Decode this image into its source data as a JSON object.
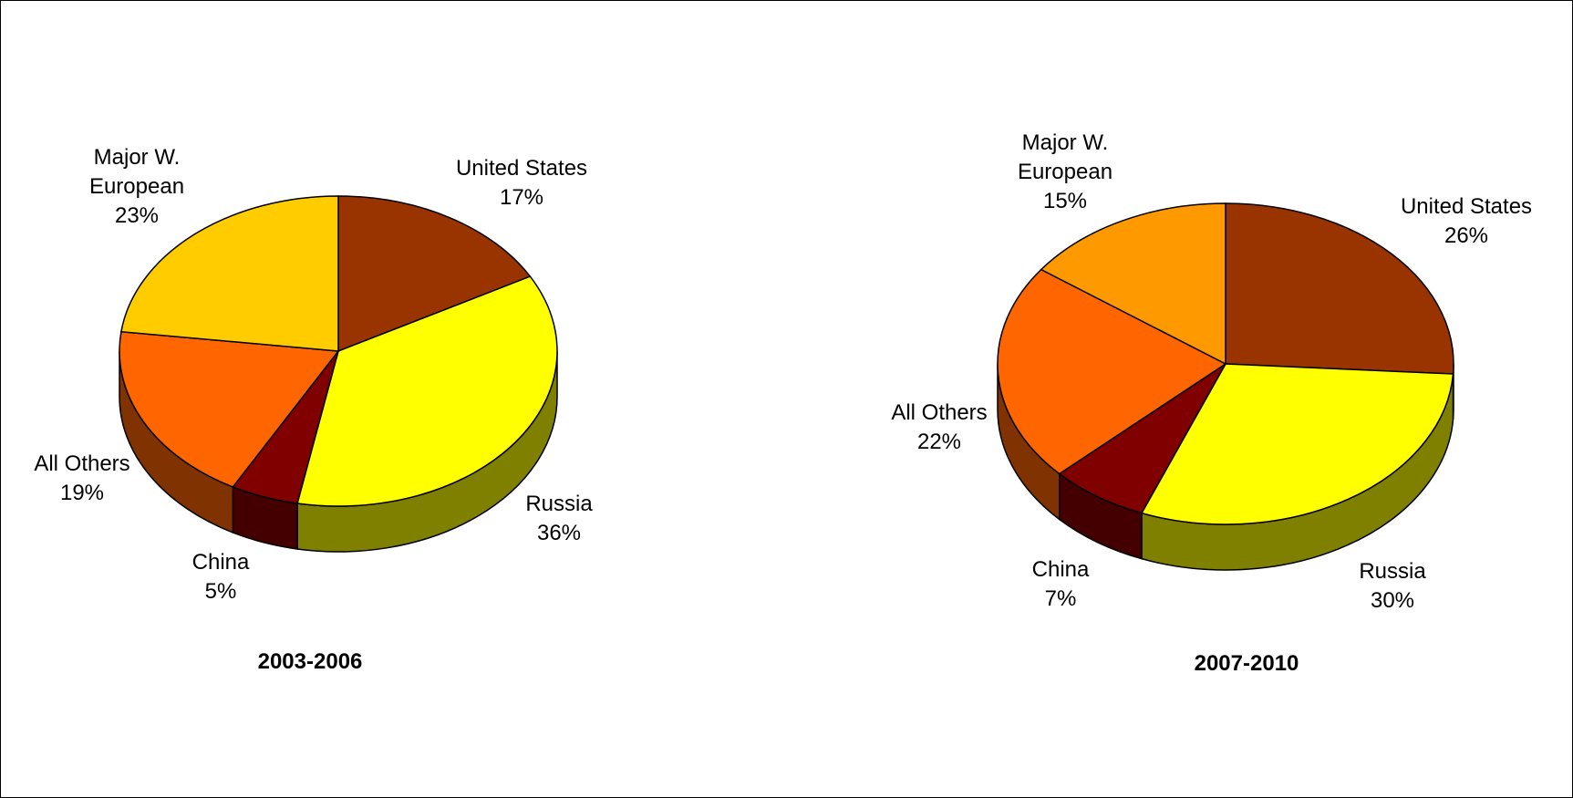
{
  "chart_data": [
    {
      "type": "pie",
      "title": "2003-2006",
      "slices": [
        {
          "label": "United States",
          "value": 17,
          "color": "#993300",
          "side": "#7a2900"
        },
        {
          "label": "Russia",
          "value": 36,
          "color": "#ffff00",
          "side": "#808000"
        },
        {
          "label": "China",
          "value": 5,
          "color": "#800000",
          "side": "#440000"
        },
        {
          "label": "All Others",
          "value": 19,
          "color": "#ff6600",
          "side": "#803300"
        },
        {
          "label": "Major W. European",
          "value": 23,
          "color": "#ffcc00",
          "side": "#806600"
        }
      ],
      "labels": [
        {
          "lines": [
            "United States",
            "17%"
          ]
        },
        {
          "lines": [
            "Russia",
            "36%"
          ]
        },
        {
          "lines": [
            "China",
            "5%"
          ]
        },
        {
          "lines": [
            "All Others",
            "19%"
          ]
        },
        {
          "lines": [
            "Major W.",
            "European",
            "23%"
          ]
        }
      ]
    },
    {
      "type": "pie",
      "title": "2007-2010",
      "slices": [
        {
          "label": "United States",
          "value": 26,
          "color": "#993300",
          "side": "#7a2900"
        },
        {
          "label": "Russia",
          "value": 30,
          "color": "#ffff00",
          "side": "#808000"
        },
        {
          "label": "China",
          "value": 7,
          "color": "#800000",
          "side": "#440000"
        },
        {
          "label": "All Others",
          "value": 22,
          "color": "#ff6600",
          "side": "#803300"
        },
        {
          "label": "Major W. European",
          "value": 15,
          "color": "#ff9900",
          "side": "#804c00"
        }
      ],
      "labels": [
        {
          "lines": [
            "United States",
            "26%"
          ]
        },
        {
          "lines": [
            "Russia",
            "30%"
          ]
        },
        {
          "lines": [
            "China",
            "7%"
          ]
        },
        {
          "lines": [
            "All Others",
            "22%"
          ]
        },
        {
          "lines": [
            "Major W.",
            "European",
            "15%"
          ]
        }
      ]
    }
  ]
}
